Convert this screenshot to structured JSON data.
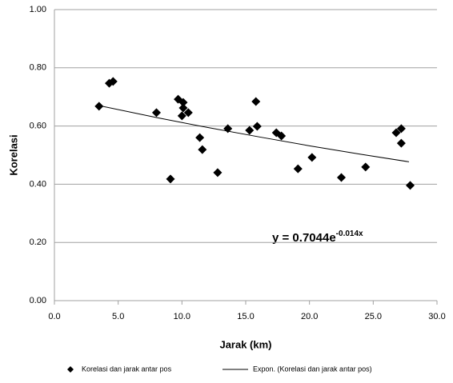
{
  "chart_data": {
    "type": "scatter",
    "x_label": "Jarak (km)",
    "y_label": "Korelasi",
    "xlim": [
      0,
      30
    ],
    "ylim": [
      0,
      1
    ],
    "xticks": [
      {
        "value": 0,
        "label": "0.0"
      },
      {
        "value": 5,
        "label": "5.0"
      },
      {
        "value": 10,
        "label": "10.0"
      },
      {
        "value": 15,
        "label": "15.0"
      },
      {
        "value": 20,
        "label": "20.0"
      },
      {
        "value": 25,
        "label": "25.0"
      },
      {
        "value": 30,
        "label": "30.0"
      }
    ],
    "yticks": [
      {
        "value": 0,
        "label": "0.00"
      },
      {
        "value": 0.2,
        "label": "0.20"
      },
      {
        "value": 0.4,
        "label": "0.40"
      },
      {
        "value": 0.6,
        "label": "0.60"
      },
      {
        "value": 0.8,
        "label": "0.80"
      },
      {
        "value": 1,
        "label": "1.00"
      }
    ],
    "grid": true,
    "legend": "bottom",
    "series": [
      {
        "name": "Korelasi dan jarak antar pos",
        "color": "#000000",
        "kind": "points",
        "x": [
          3.5,
          4.3,
          4.6,
          8.0,
          9.1,
          9.7,
          10.1,
          10.1,
          10.0,
          10.5,
          11.4,
          11.6,
          12.8,
          13.6,
          15.3,
          15.8,
          15.9,
          17.4,
          17.8,
          19.1,
          20.2,
          22.5,
          24.4,
          26.8,
          27.2,
          27.2,
          27.9
        ],
        "values": [
          0.668,
          0.747,
          0.753,
          0.646,
          0.418,
          0.692,
          0.681,
          0.662,
          0.635,
          0.646,
          0.56,
          0.519,
          0.44,
          0.591,
          0.585,
          0.684,
          0.599,
          0.577,
          0.566,
          0.453,
          0.492,
          0.423,
          0.459,
          0.577,
          0.591,
          0.541,
          0.396
        ]
      },
      {
        "name": "Expon. (Korelasi dan jarak antar pos)",
        "color": "#000000",
        "kind": "line",
        "x": [
          3.3,
          8,
          12,
          16,
          20,
          24,
          27.8
        ],
        "values": [
          0.672,
          0.629,
          0.595,
          0.563,
          0.532,
          0.503,
          0.477
        ]
      }
    ],
    "equation": {
      "text": "y = 0.7044e",
      "exponent": "-0.014x"
    }
  }
}
